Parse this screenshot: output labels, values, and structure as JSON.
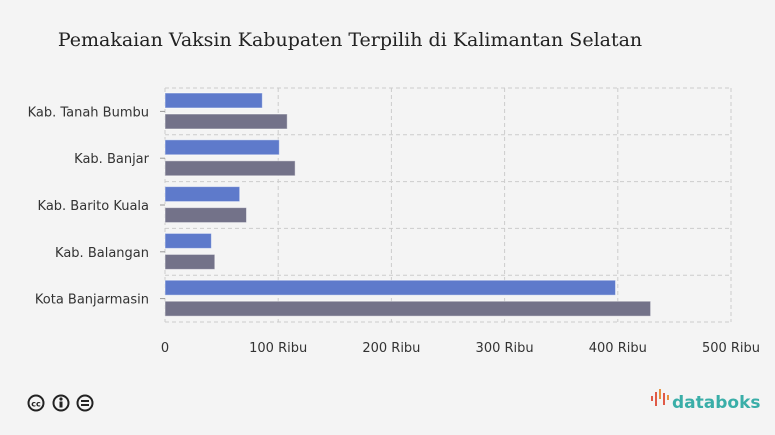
{
  "chart_data": {
    "type": "bar",
    "orientation": "horizontal",
    "title": "Pemakaian Vaksin Kabupaten Terpilih di Kalimantan Selatan",
    "categories": [
      "Kab. Tanah Bumbu",
      "Kab. Banjar",
      "Kab. Barito Kuala",
      "Kab. Balangan",
      "Kota Banjarmasin"
    ],
    "series": [
      {
        "name": "series-1",
        "color": "#5e7acb",
        "values": [
          86,
          101,
          66,
          41,
          398
        ]
      },
      {
        "name": "series-2",
        "color": "#737289",
        "values": [
          108,
          115,
          72,
          44,
          429
        ]
      }
    ],
    "xlim": [
      0,
      500
    ],
    "xticks": [
      0,
      100,
      200,
      300,
      400,
      500
    ],
    "xtick_labels": [
      "0",
      "100 Ribu",
      "200 Ribu",
      "300 Ribu",
      "400 Ribu",
      "500 Ribu"
    ],
    "units": "Ribu",
    "grid": true
  },
  "footer": {
    "brand": "databoks",
    "license_icons": [
      "cc-icon",
      "by-icon",
      "nd-icon"
    ]
  }
}
